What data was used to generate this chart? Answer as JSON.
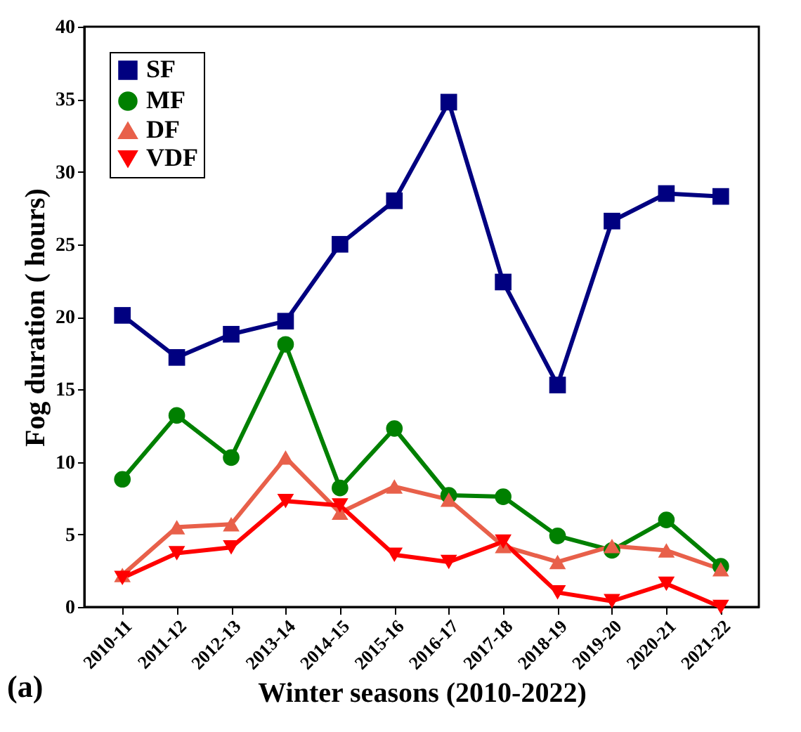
{
  "chart_data": {
    "type": "line",
    "xlabel": "Winter seasons (2010-2022)",
    "ylabel": "Fog duration ( hours)",
    "categories": [
      "2010-11",
      "2011-12",
      "2012-13",
      "2013-14",
      "2014-15",
      "2015-16",
      "2016-17",
      "2017-18",
      "2018-19",
      "2019-20",
      "2020-21",
      "2021-22"
    ],
    "series": [
      {
        "name": "SF",
        "color": "#000080",
        "marker": "square",
        "values": [
          20.1,
          17.2,
          18.8,
          19.7,
          25.0,
          28.0,
          34.8,
          22.4,
          15.3,
          26.6,
          28.5,
          28.3
        ]
      },
      {
        "name": "MF",
        "color": "#008000",
        "marker": "circle",
        "values": [
          8.8,
          13.2,
          10.3,
          18.1,
          8.2,
          12.3,
          7.7,
          7.6,
          4.9,
          3.9,
          6.0,
          2.8
        ]
      },
      {
        "name": "DF",
        "color": "#e8604a",
        "marker": "triangle",
        "values": [
          2.2,
          5.5,
          5.7,
          10.3,
          6.5,
          8.3,
          7.4,
          4.2,
          3.1,
          4.2,
          3.9,
          2.6
        ]
      },
      {
        "name": "VDF",
        "color": "#ff0000",
        "marker": "triangle-down",
        "values": [
          2.0,
          3.7,
          4.1,
          7.3,
          7.0,
          3.6,
          3.1,
          4.5,
          1.0,
          0.4,
          1.6,
          0.0
        ]
      }
    ],
    "ylim": [
      0,
      40
    ],
    "yticks": [
      0,
      5,
      10,
      15,
      20,
      25,
      30,
      35,
      40
    ],
    "grid": false,
    "legend": "top left",
    "line_style": "solid",
    "annotations": [
      "(a)"
    ]
  }
}
